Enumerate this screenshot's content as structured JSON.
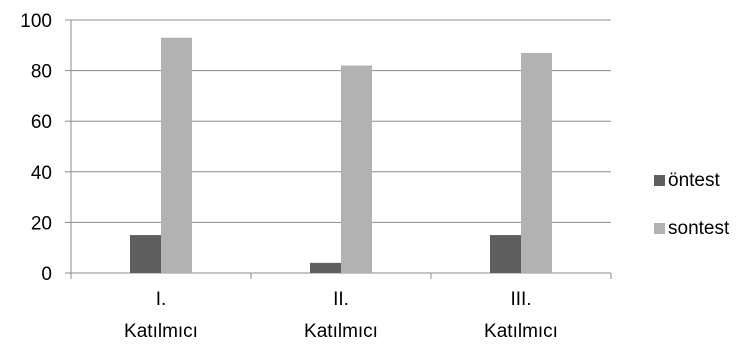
{
  "chart_data": {
    "type": "bar",
    "categories": [
      [
        "I.",
        "Katılmıcı"
      ],
      [
        "II.",
        "Katılmıcı"
      ],
      [
        "III.",
        "Katılmıcı"
      ]
    ],
    "series": [
      {
        "name": "öntest",
        "values": [
          15,
          4,
          15
        ],
        "color": "#5f5f5f"
      },
      {
        "name": "sontest",
        "values": [
          93,
          82,
          87
        ],
        "color": "#b2b2b2"
      }
    ],
    "yticks": [
      "0",
      "20",
      "40",
      "60",
      "80",
      "100"
    ],
    "ylim": [
      0,
      100
    ],
    "grid": true,
    "legend": "right",
    "title": "",
    "xlabel": "",
    "ylabel": ""
  }
}
